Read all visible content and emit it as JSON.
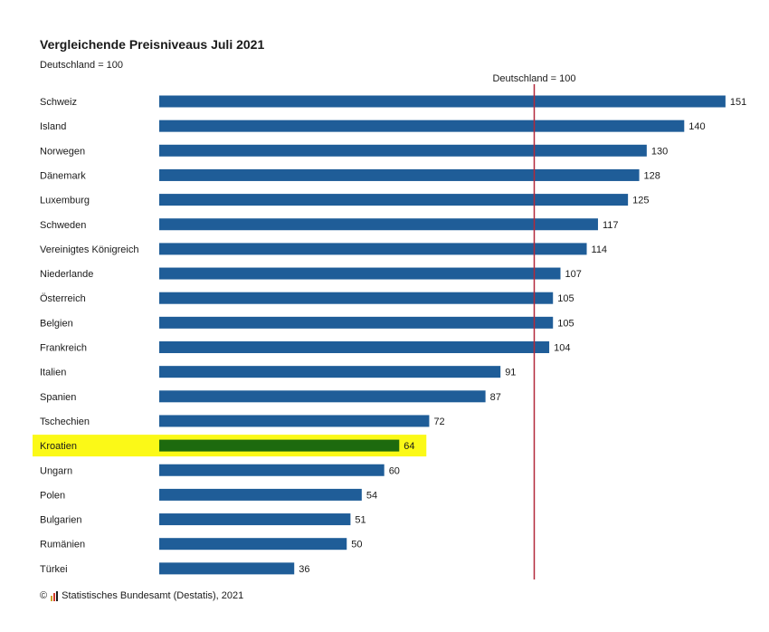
{
  "title": "Vergleichende Preisniveaus Juli 2021",
  "subtitle": "Deutschland = 100",
  "footer": {
    "copyright": "©",
    "source": "Statistisches Bundesamt (Destatis), 2021"
  },
  "colors": {
    "bar": "#1f5d98",
    "highlight_bar": "#1d6a0e",
    "highlight_bg": "#fbf917",
    "reference_line": "#b3283a",
    "logo": [
      "#c9a227",
      "#d33a2c",
      "#1f1f1f"
    ]
  },
  "chart_data": {
    "type": "bar",
    "orientation": "horizontal",
    "title": "Vergleichende Preisniveaus Juli 2021",
    "subtitle": "Deutschland = 100",
    "categories": [
      "Schweiz",
      "Island",
      "Norwegen",
      "Dänemark",
      "Luxemburg",
      "Schweden",
      "Vereinigtes Königreich",
      "Niederlande",
      "Österreich",
      "Belgien",
      "Frankreich",
      "Italien",
      "Spanien",
      "Tschechien",
      "Kroatien",
      "Ungarn",
      "Polen",
      "Bulgarien",
      "Rumänien",
      "Türkei"
    ],
    "values": [
      151,
      140,
      130,
      128,
      125,
      117,
      114,
      107,
      105,
      105,
      104,
      91,
      87,
      72,
      64,
      60,
      54,
      51,
      50,
      36
    ],
    "highlighted": "Kroatien",
    "reference_line": {
      "value": 100,
      "label": "Deutschland = 100"
    },
    "xlim": [
      0,
      151
    ],
    "xlabel": "",
    "ylabel": "",
    "grid": false
  }
}
